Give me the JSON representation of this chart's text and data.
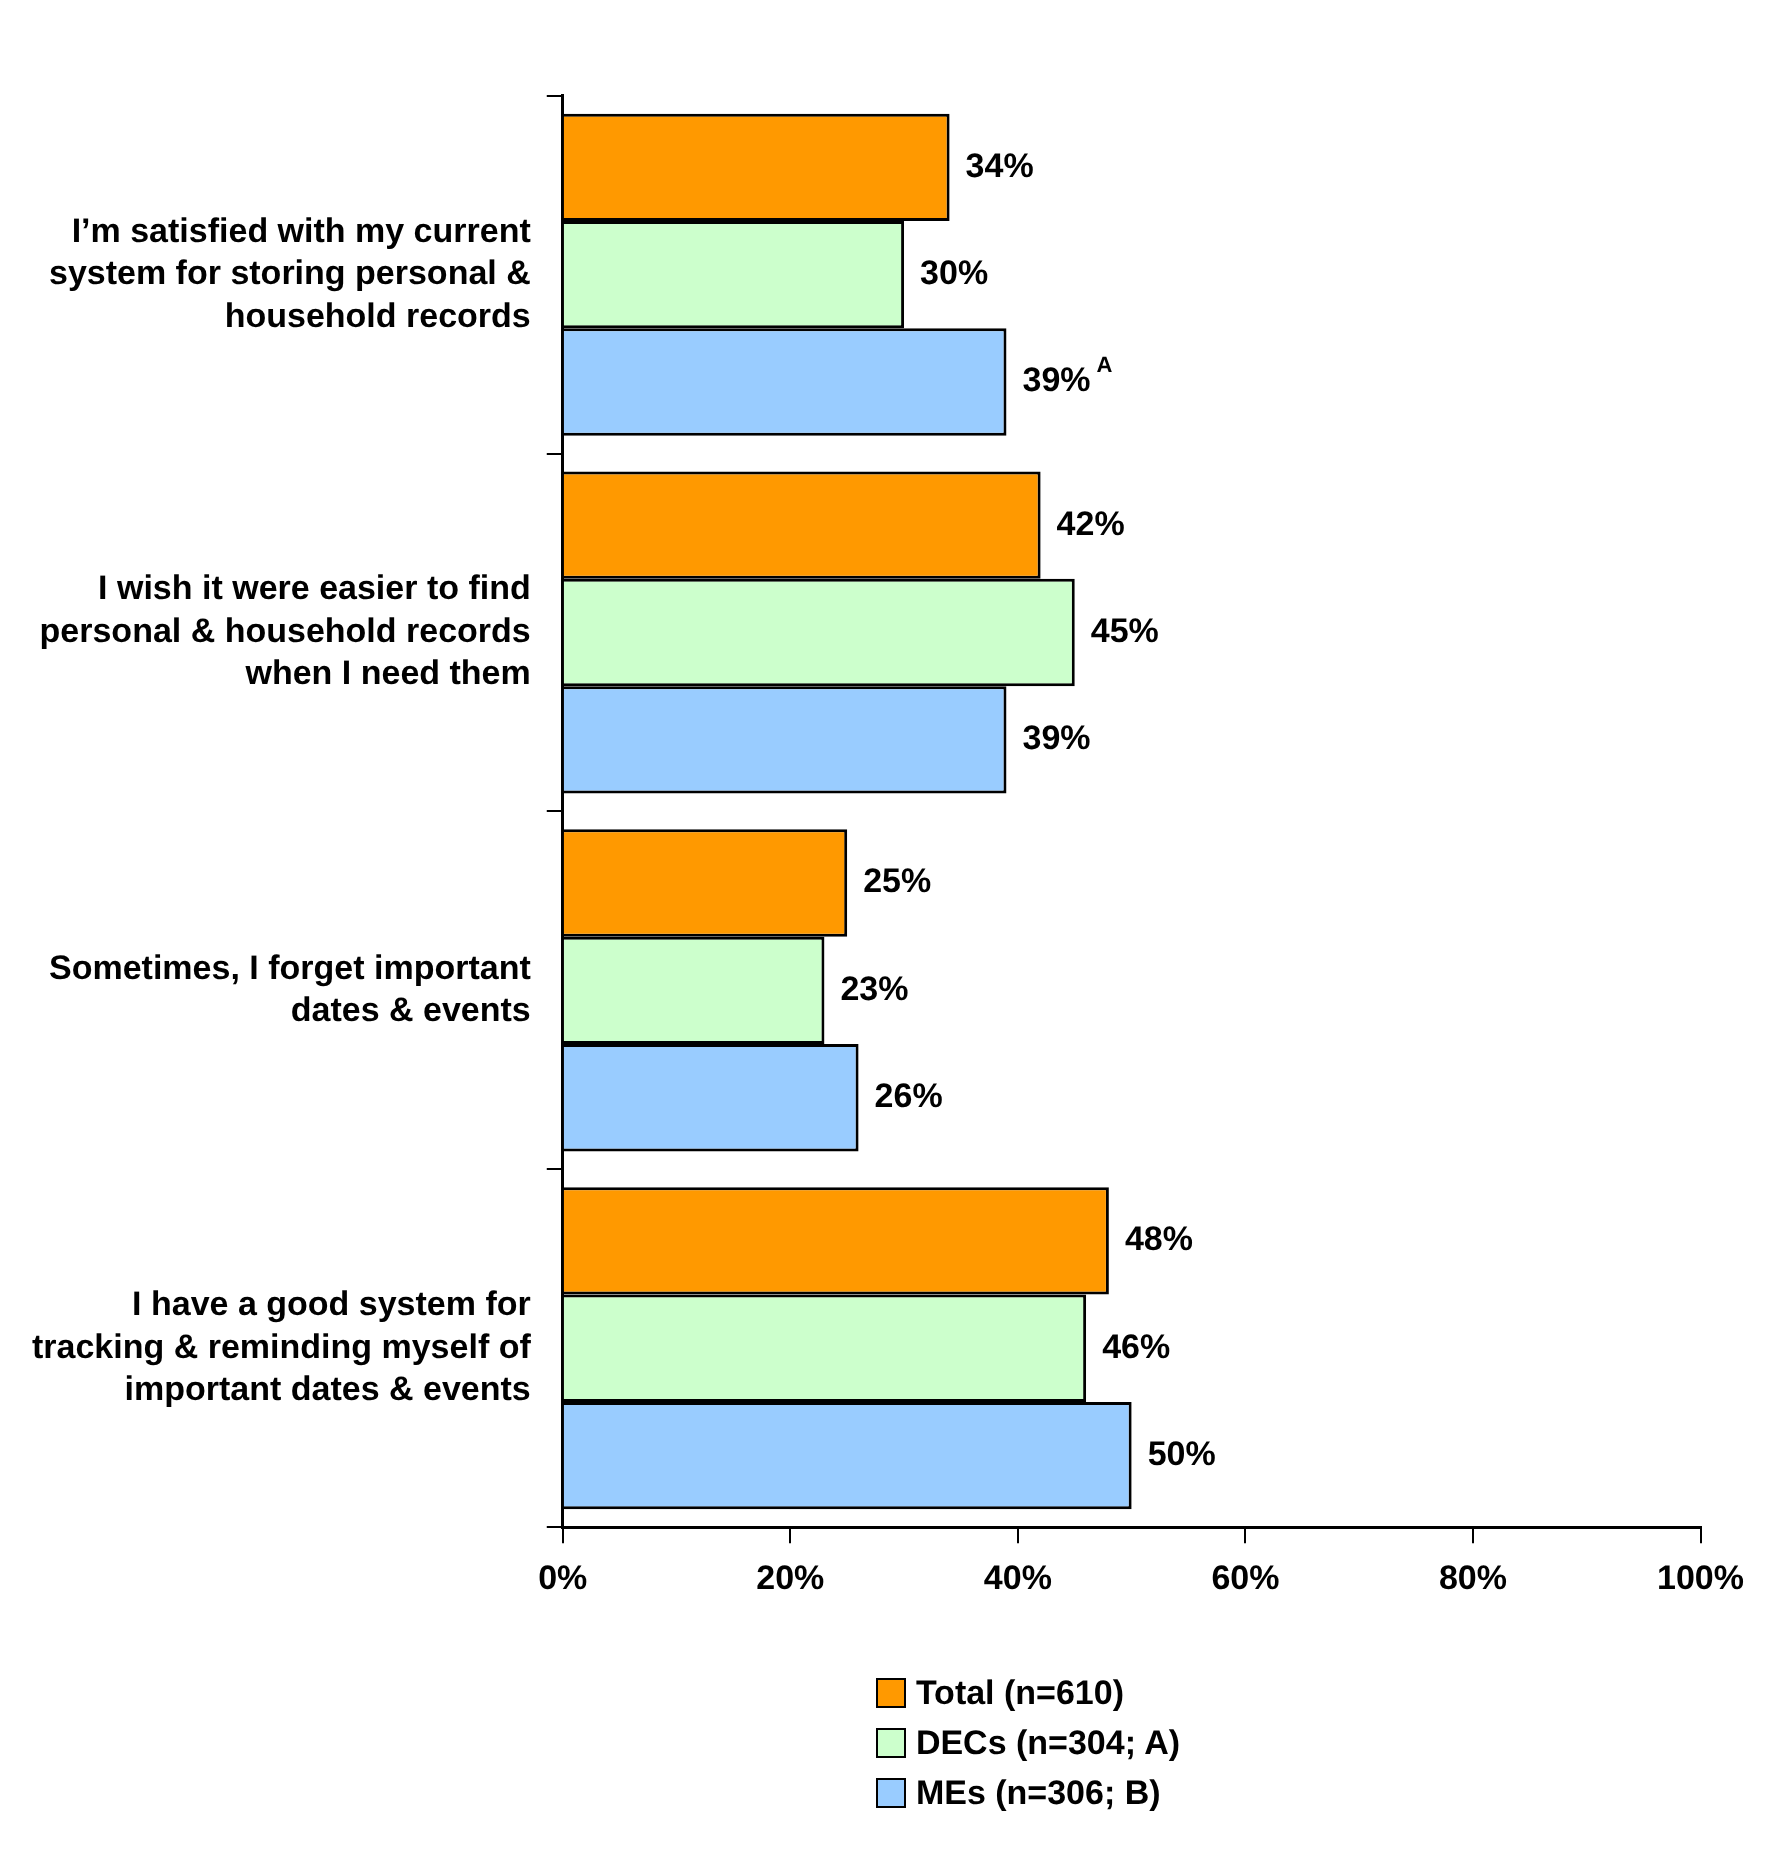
{
  "chart_data": {
    "type": "bar",
    "orientation": "horizontal",
    "categories": [
      "I’m satisfied with my current system for storing personal & household records",
      "I wish it were easier to find personal & household records when I need them",
      "Sometimes, I forget important dates & events",
      "I have a good system for tracking & reminding myself of important dates & events"
    ],
    "series": [
      {
        "name": "Total (n=610)",
        "color": "#ff9900",
        "values": [
          34,
          42,
          25,
          48
        ],
        "value_labels": [
          "34%",
          "42%",
          "25%",
          "48%"
        ]
      },
      {
        "name": "DECs (n=304; A)",
        "color": "#ccffcc",
        "values": [
          30,
          45,
          23,
          46
        ],
        "value_labels": [
          "30%",
          "45%",
          "23%",
          "46%"
        ]
      },
      {
        "name": "MEs (n=306; B)",
        "color": "#99ccff",
        "values": [
          39,
          39,
          26,
          50
        ],
        "value_labels": [
          "39%$^{A}$",
          "39%",
          "26%",
          "50%"
        ]
      }
    ],
    "xlim": [
      0,
      100
    ],
    "xticks": [
      {
        "value": 0,
        "label": "0%"
      },
      {
        "value": 20,
        "label": "20%"
      },
      {
        "value": 40,
        "label": "40%"
      },
      {
        "value": 60,
        "label": "60%"
      },
      {
        "value": 80,
        "label": "80%"
      },
      {
        "value": 100,
        "label": "100%"
      }
    ],
    "grid": false,
    "legend": "bottom"
  }
}
